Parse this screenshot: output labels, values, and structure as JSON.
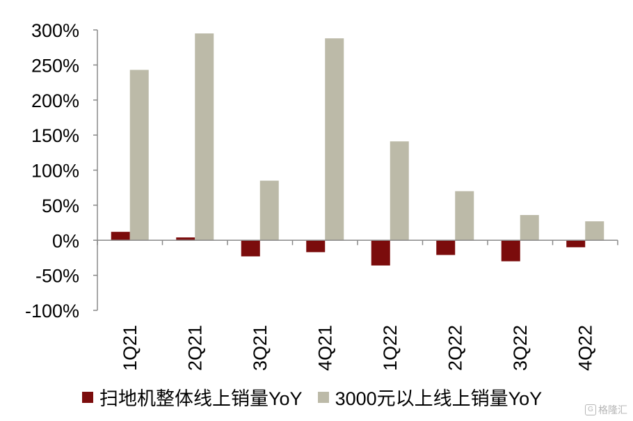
{
  "chart_data": {
    "type": "bar",
    "categories": [
      "1Q21",
      "2Q21",
      "3Q21",
      "4Q21",
      "1Q22",
      "2Q22",
      "3Q22",
      "4Q22"
    ],
    "series": [
      {
        "name": "扫地机整体线上销量YoY",
        "color": "#7b0c0c",
        "values": [
          12,
          4,
          -23,
          -17,
          -36,
          -21,
          -30,
          -10
        ]
      },
      {
        "name": "3000元以上线上销量YoY",
        "color": "#bcbaa8",
        "values": [
          243,
          295,
          85,
          288,
          141,
          70,
          36,
          27
        ]
      }
    ],
    "yticks": [
      "300%",
      "250%",
      "200%",
      "150%",
      "100%",
      "50%",
      "0%",
      "-50%",
      "-100%"
    ],
    "ylim": [
      -100,
      300
    ],
    "xlabel": "",
    "ylabel": "",
    "grid": false,
    "legend_position": "bottom",
    "watermark": "格隆汇"
  }
}
